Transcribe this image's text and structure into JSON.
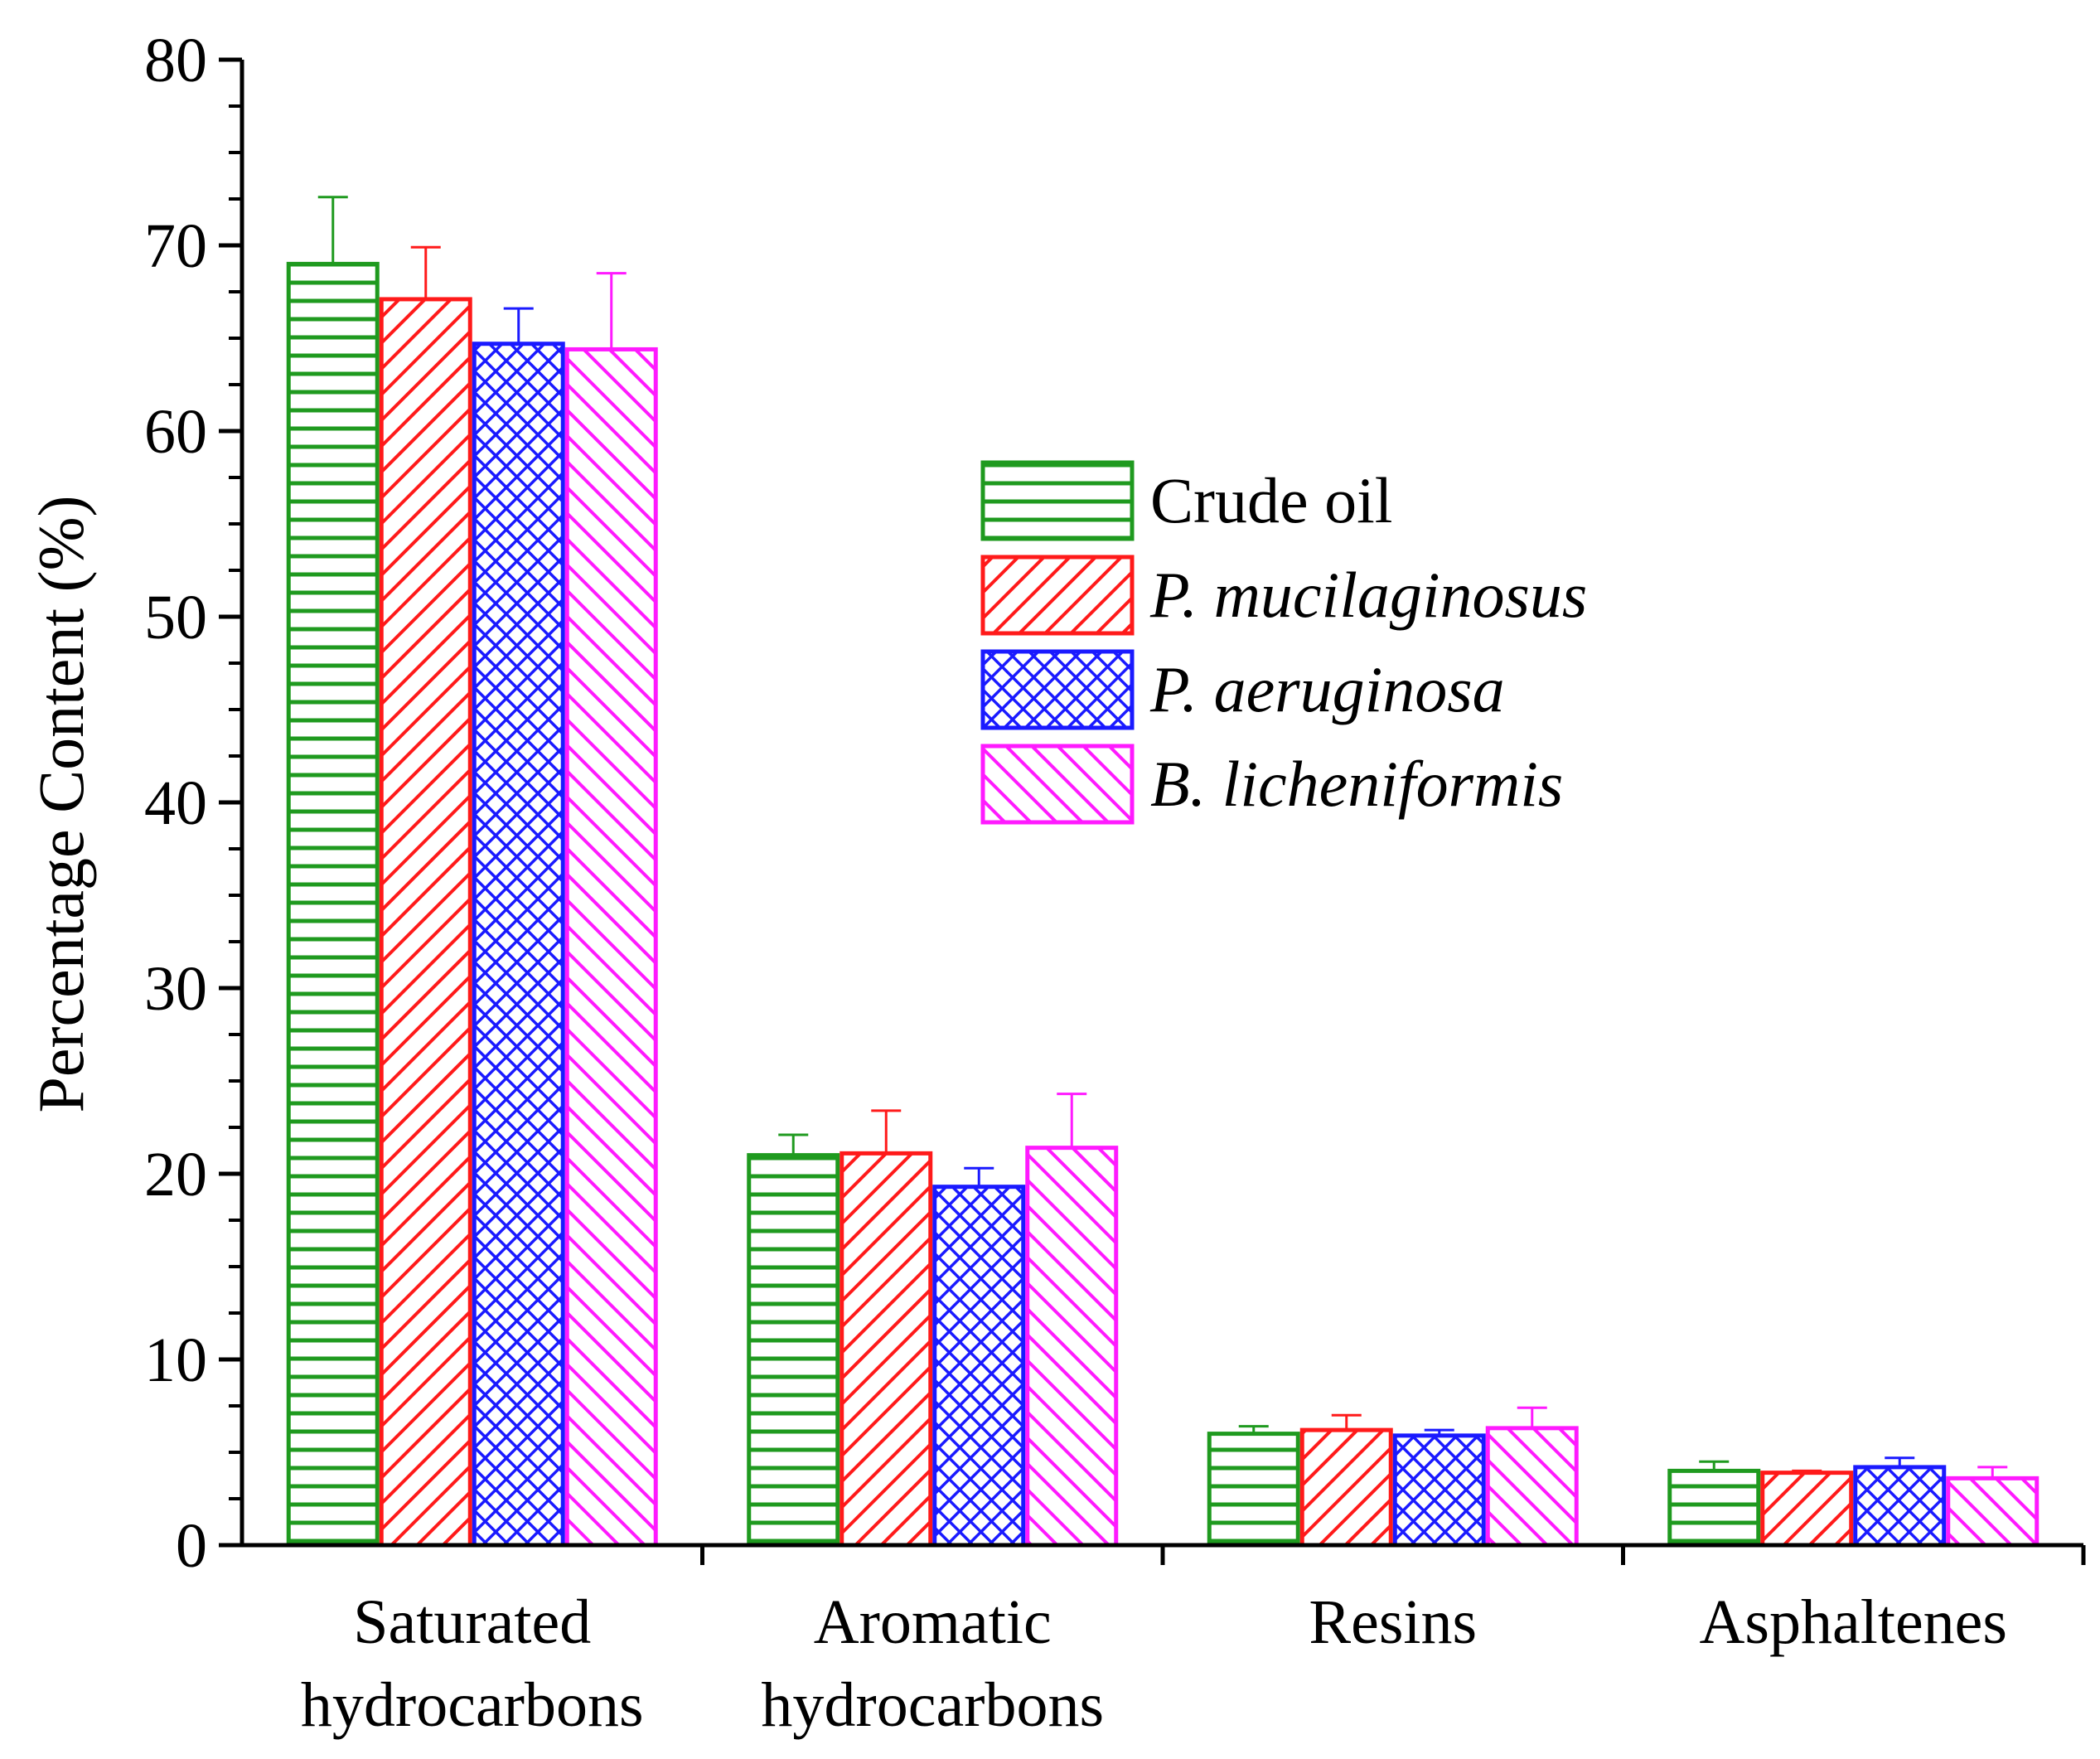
{
  "chart_data": {
    "type": "bar",
    "title": "",
    "xlabel": "",
    "ylabel": "Percentage Content (%)",
    "ylim": [
      0,
      80
    ],
    "yticks": [
      0,
      10,
      20,
      30,
      40,
      50,
      60,
      70,
      80
    ],
    "categories": [
      [
        "Saturated",
        "hydrocarbons"
      ],
      [
        "Aromatic",
        "hydrocarbons"
      ],
      [
        "Resins"
      ],
      [
        "Asphaltenes"
      ]
    ],
    "legend_position": "upper-middle",
    "series": [
      {
        "name": "Crude oil",
        "italic": false,
        "color": "#1f9a1f",
        "pattern": "horizontal-lines",
        "values": [
          69.0,
          21.0,
          6.0,
          4.0
        ],
        "errors": [
          3.6,
          1.1,
          0.4,
          0.5
        ]
      },
      {
        "name": "P. mucilaginosus",
        "italic": true,
        "color": "#ff1a1a",
        "pattern": "diagonal-right",
        "values": [
          67.1,
          21.1,
          6.2,
          3.9
        ],
        "errors": [
          2.8,
          2.3,
          0.8,
          0.1
        ]
      },
      {
        "name": "P. aeruginosa",
        "italic": true,
        "color": "#1a1aff",
        "pattern": "crosshatch",
        "values": [
          64.7,
          19.3,
          5.9,
          4.2
        ],
        "errors": [
          1.9,
          1.0,
          0.3,
          0.5
        ]
      },
      {
        "name": "B. licheniformis",
        "italic": true,
        "color": "#ff1aff",
        "pattern": "diagonal-left",
        "values": [
          64.4,
          21.4,
          6.3,
          3.6
        ],
        "errors": [
          4.1,
          2.9,
          1.1,
          0.6
        ]
      }
    ]
  }
}
